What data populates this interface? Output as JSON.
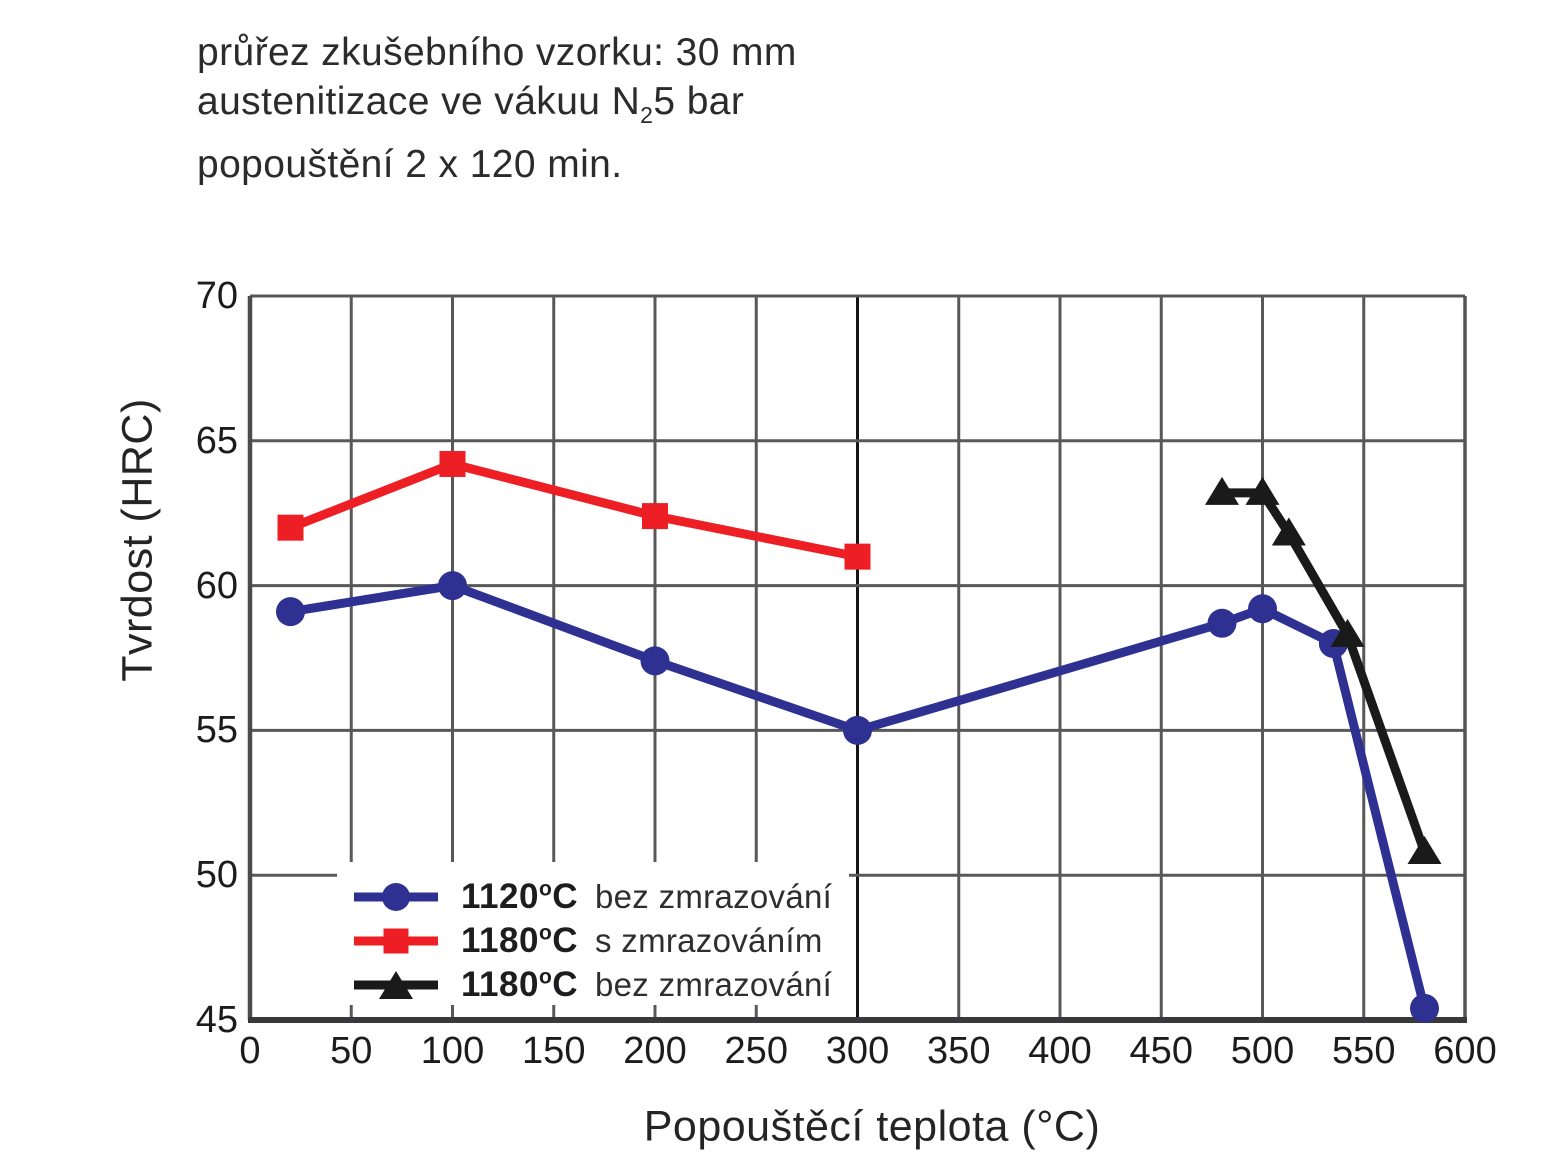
{
  "header": {
    "line1": "průřez zkušebního vzorku: 30 mm",
    "line2_pre": "austenitizace ve vákuu N",
    "line2_sub": "2",
    "line2_post": "5 bar",
    "line3": "popouštění 2 x 120 min."
  },
  "chart_data": {
    "type": "line",
    "title": "",
    "xlabel": "Popouštěcí teplota (°C)",
    "ylabel": "Tvrdost (HRC)",
    "xlim": [
      0,
      600
    ],
    "ylim": [
      45,
      70
    ],
    "x_ticks": [
      0,
      50,
      100,
      150,
      200,
      250,
      300,
      350,
      400,
      450,
      500,
      550,
      600
    ],
    "y_ticks": [
      45,
      50,
      55,
      60,
      65,
      70
    ],
    "grid": true,
    "dark_gridline_x": 300,
    "legend_position": "inside-bottom-left",
    "series": [
      {
        "name": "1120°C bez zmrazování",
        "color": "#2e3192",
        "marker": "circle",
        "x": [
          20,
          100,
          200,
          300,
          480,
          500,
          535,
          580
        ],
        "y": [
          59.1,
          60.0,
          57.4,
          55.0,
          58.7,
          59.2,
          58.0,
          45.4
        ]
      },
      {
        "name": "1180°C s zmrazováním",
        "color": "#ed1f24",
        "marker": "square",
        "x": [
          20,
          100,
          200,
          300
        ],
        "y": [
          62.0,
          64.2,
          62.4,
          61.0
        ]
      },
      {
        "name": "1180°C bez zmrazování",
        "color": "#1a1a1a",
        "marker": "triangle",
        "x": [
          480,
          500,
          513,
          542,
          580
        ],
        "y": [
          63.2,
          63.2,
          61.8,
          58.3,
          50.8
        ]
      }
    ]
  },
  "legend": {
    "items": [
      {
        "temp": "1120",
        "deg": "o",
        "unit": "C",
        "desc": "bez zmrazování"
      },
      {
        "temp": "1180",
        "deg": "o",
        "unit": "C",
        "desc": "s zmrazováním"
      },
      {
        "temp": "1180",
        "deg": "o",
        "unit": "C",
        "desc": "bez zmrazování"
      }
    ]
  }
}
